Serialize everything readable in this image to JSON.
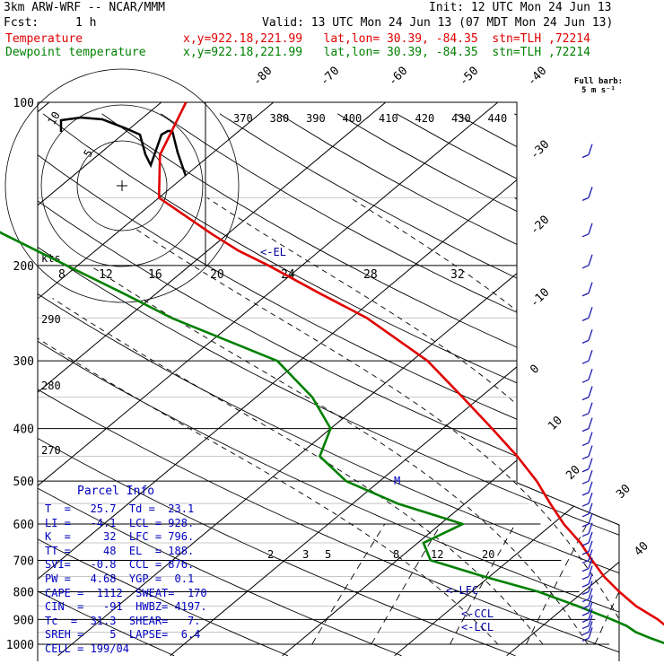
{
  "header": {
    "model": "3km ARW-WRF -- NCAR/MMM",
    "init": "Init: 12 UTC Mon 24 Jun 13",
    "fcst_label": "Fcst:",
    "fcst_value": "1 h",
    "valid": "Valid: 13 UTC Mon 24 Jun 13 (07 MDT Mon 24 Jun 13)",
    "temperature_label": "Temperature",
    "temperature_info": "x,y=922.18,221.99   lat,lon= 30.39, -84.35  stn=TLH ,72214",
    "dewpoint_label": "Dewpoint temperature",
    "dewpoint_info": "x,y=922.18,221.99   lat,lon= 30.39, -84.35  stn=TLH ,72214"
  },
  "barb_legend": {
    "line1": "Full barb:",
    "line2": "5 m s⁻¹"
  },
  "parcel": {
    "title": "Parcel Info",
    "rows": [
      "T  =   25.7  Td =  23.1",
      "LI =   -4.1  LCL = 928.",
      "K  =     32  LFC = 796.",
      "TT =     48  EL  = 188.",
      "SVI=   -0.8  CCL = 876.",
      "PW =   4.68  YGP =  0.1",
      "CAPE =  1112  SWEAT=  170",
      "CIN  =   -91  HWBZ= 4197.",
      "Tc  =  31.3  SHEAR=   7.",
      "SREH =    5  LAPSE=  6.4",
      "CELL = 199/04"
    ]
  },
  "colors": {
    "temperature": "#e00000",
    "dewpoint": "#008000",
    "grid": "#000000",
    "parcel_text": "#0000c0",
    "wind_barbs": "#1a1ab0"
  },
  "chart_data": {
    "type": "line",
    "chart_kind": "skew-T log-P",
    "pressure_levels": [
      "100",
      "200",
      "300",
      "400",
      "500",
      "600",
      "700",
      "800",
      "900",
      "1000"
    ],
    "isotherm_labels_top": [
      "-80",
      "-70",
      "-60",
      "-50",
      "-40"
    ],
    "isotherm_labels_right": [
      "-30",
      "-20",
      "-10",
      "0",
      "10",
      "20",
      "30",
      "40"
    ],
    "theta_e_labels": [
      "370",
      "380",
      "390",
      "400",
      "410",
      "420",
      "430",
      "440"
    ],
    "dry_adiabat_labels": [
      "290",
      "280",
      "270"
    ],
    "mixing_ratio_labels": [
      "2",
      "3",
      "5",
      "8",
      "12",
      "20"
    ],
    "hodograph": {
      "units": "kts",
      "ring_labels": [
        "10",
        "5"
      ],
      "speed_labels": [
        "8",
        "12",
        "16",
        "20",
        "24",
        "28",
        "32"
      ]
    },
    "annotations": [
      "<-EL",
      "<-LFC",
      "<-CCL",
      "<-LCL",
      "M"
    ],
    "series": [
      {
        "name": "Temperature",
        "points": [
          [
            1000,
            25.7
          ],
          [
            975,
            24.0
          ],
          [
            950,
            22.3
          ],
          [
            925,
            21.0
          ],
          [
            900,
            19.6
          ],
          [
            850,
            16.2
          ],
          [
            800,
            13.2
          ],
          [
            750,
            10.2
          ],
          [
            700,
            7.4
          ],
          [
            650,
            4.5
          ],
          [
            600,
            1.0
          ],
          [
            550,
            -2.4
          ],
          [
            500,
            -6.0
          ],
          [
            450,
            -10.4
          ],
          [
            400,
            -15.6
          ],
          [
            350,
            -21.6
          ],
          [
            300,
            -28.6
          ],
          [
            250,
            -38.6
          ],
          [
            225,
            -45.5
          ],
          [
            200,
            -53.0
          ],
          [
            188,
            -57.2
          ],
          [
            175,
            -61.4
          ],
          [
            150,
            -70.0
          ],
          [
            125,
            -74.5
          ],
          [
            100,
            -77.8
          ]
        ]
      },
      {
        "name": "Dewpoint temperature",
        "points": [
          [
            1000,
            23.1
          ],
          [
            975,
            21.0
          ],
          [
            950,
            19.0
          ],
          [
            925,
            17.5
          ],
          [
            900,
            15.5
          ],
          [
            850,
            11.0
          ],
          [
            800,
            6.0
          ],
          [
            750,
            -0.5
          ],
          [
            700,
            -7.0
          ],
          [
            650,
            -9.5
          ],
          [
            600,
            -8.0
          ],
          [
            550,
            -16.0
          ],
          [
            500,
            -23.0
          ],
          [
            450,
            -28.0
          ],
          [
            400,
            -30.0
          ],
          [
            350,
            -35.0
          ],
          [
            300,
            -42.0
          ],
          [
            250,
            -56.0
          ],
          [
            225,
            -63.0
          ],
          [
            200,
            -71.0
          ],
          [
            175,
            -80.0
          ],
          [
            150,
            -90.0
          ],
          [
            125,
            -100.0
          ],
          [
            100,
            -108.0
          ]
        ]
      }
    ],
    "xlim_celsius": [
      -40,
      50
    ],
    "ylim_hpa": [
      1025,
      100
    ],
    "grid": true
  }
}
